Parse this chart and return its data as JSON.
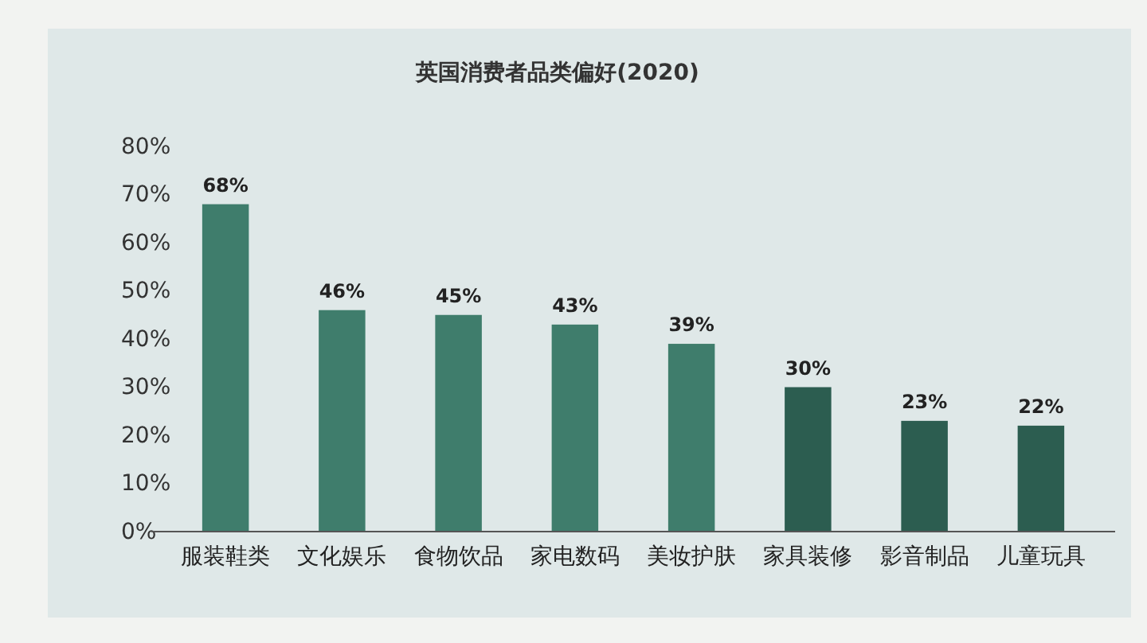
{
  "chart_data": {
    "type": "bar",
    "title": "英国消费者品类偏好(2020)",
    "categories": [
      "服装鞋类",
      "文化娱乐",
      "食物饮品",
      "家电数码",
      "美妆护肤",
      "家具装修",
      "影音制品",
      "儿童玩具"
    ],
    "values": [
      68,
      46,
      45,
      43,
      39,
      30,
      23,
      22
    ],
    "value_labels": [
      "68%",
      "46%",
      "45%",
      "43%",
      "39%",
      "30%",
      "23%",
      "22%"
    ],
    "colors": [
      "#3f7d6c",
      "#3f7d6c",
      "#3f7d6c",
      "#3f7d6c",
      "#3f7d6c",
      "#2c5d50",
      "#2c5d50",
      "#2c5d50"
    ],
    "ylim": [
      0,
      80
    ],
    "yticks": [
      {
        "value": 0,
        "label": "0%"
      },
      {
        "value": 10,
        "label": "10%"
      },
      {
        "value": 20,
        "label": "20%"
      },
      {
        "value": 30,
        "label": "30%"
      },
      {
        "value": 40,
        "label": "40%"
      },
      {
        "value": 50,
        "label": "50%"
      },
      {
        "value": 60,
        "label": "60%"
      },
      {
        "value": 70,
        "label": "70%"
      },
      {
        "value": 80,
        "label": "80%"
      }
    ]
  }
}
